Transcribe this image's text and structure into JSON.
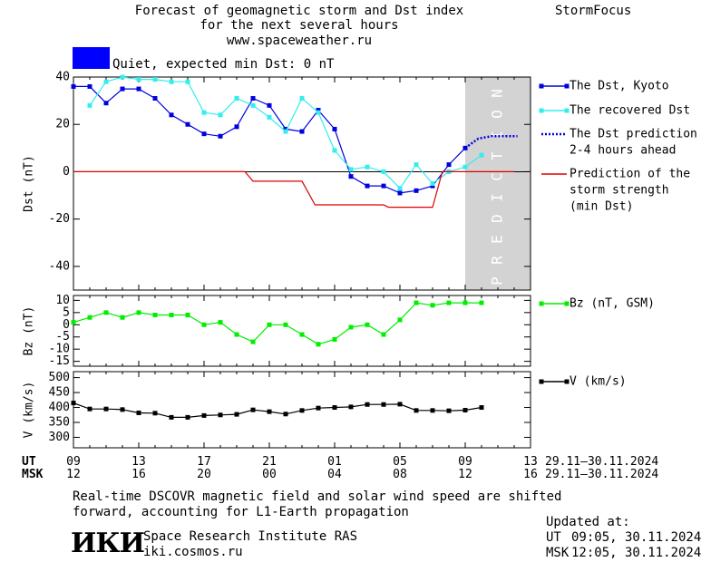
{
  "header": {
    "title_line1": "Forecast of geomagnetic storm and Dst index",
    "title_line2": "for the next several hours",
    "title_line3": "www.spaceweather.ru",
    "brand": "StormFocus",
    "status_text": "Quiet, expected min Dst: 0 nT",
    "status_color": "#0000ff"
  },
  "footer": {
    "note_line1": "Real-time DSCOVR magnetic field and solar wind speed are shifted",
    "note_line2": "forward, accounting for L1-Earth propagation",
    "institute": "Space Research Institute RAS",
    "site": "iki.cosmos.ru",
    "logo_text": "ИКИ",
    "updated_label": "Updated at:",
    "updated_ut_label": "UT",
    "updated_ut": "09:05, 30.11.2024",
    "updated_msk_label": "MSK",
    "updated_msk": "12:05, 30.11.2024"
  },
  "chart_data": {
    "type": "line",
    "x_start_hour": 9,
    "x_range_hours": [
      0,
      28
    ],
    "x_axis": {
      "ut_label": "UT",
      "msk_label": "MSK",
      "ut_ticks": [
        "09",
        "13",
        "17",
        "21",
        "01",
        "05",
        "09",
        "13"
      ],
      "msk_ticks": [
        "12",
        "16",
        "20",
        "00",
        "04",
        "08",
        "12",
        "16"
      ],
      "date_range": "29.11–30.11.2024"
    },
    "prediction_region": {
      "from_hours": 24,
      "to_hours": 28,
      "label": "PREDICTION"
    },
    "panels": [
      {
        "id": "dst",
        "ylabel": "Dst (nT)",
        "ylim": [
          -50,
          40
        ],
        "yticks": [
          40,
          20,
          0,
          -20,
          -40
        ],
        "zero_line": true,
        "series": [
          {
            "name": "The Dst, Kyoto",
            "color": "#0000dd",
            "marker": "square",
            "x": [
              0,
              1,
              2,
              3,
              4,
              5,
              6,
              7,
              8,
              9,
              10,
              11,
              12,
              13,
              14,
              15,
              16,
              17,
              18,
              19,
              20,
              21,
              22,
              23,
              24
            ],
            "y": [
              36,
              36,
              29,
              35,
              35,
              31,
              24,
              20,
              16,
              15,
              19,
              31,
              28,
              18,
              17,
              26,
              18,
              -2,
              -6,
              -6,
              -9,
              -8,
              -6,
              3,
              10
            ]
          },
          {
            "name": "The recovered Dst",
            "color": "#33eeee",
            "marker": "square",
            "x": [
              1,
              2,
              3,
              4,
              5,
              6,
              7,
              8,
              9,
              10,
              11,
              12,
              13,
              14,
              15,
              16,
              17,
              18,
              19,
              20,
              21,
              22,
              23,
              24,
              25
            ],
            "y": [
              28,
              38,
              40,
              39,
              39,
              38,
              38,
              25,
              24,
              31,
              28,
              23,
              17,
              31,
              25,
              9,
              1,
              2,
              0,
              -7,
              3,
              -5,
              0,
              2,
              7
            ]
          },
          {
            "name": "The Dst prediction",
            "name_line2": "2-4 hours ahead",
            "color": "#0000dd",
            "dashed": true,
            "x": [
              24,
              24.8,
              25.6,
              26.4,
              27.2
            ],
            "y": [
              10,
              14,
              15,
              15,
              15
            ]
          },
          {
            "name": "Prediction of the",
            "name_line2": "storm strength",
            "name_line3": "(min Dst)",
            "color": "#dd0000",
            "step": true,
            "x": [
              0,
              10.5,
              11,
              14,
              14.8,
              15,
              19,
              19.3,
              22,
              22.6,
              27
            ],
            "y": [
              0,
              0,
              -4,
              -4,
              -14,
              -14,
              -14,
              -15,
              -15,
              0,
              0
            ]
          }
        ]
      },
      {
        "id": "bz",
        "ylabel": "Bz (nT)",
        "ylim": [
          -17,
          12
        ],
        "yticks": [
          10,
          5,
          0,
          -5,
          -10,
          -15
        ],
        "zero_line": false,
        "series": [
          {
            "name": "Bz (nT, GSM)",
            "color": "#00ee00",
            "marker": "square",
            "x": [
              0,
              1,
              2,
              3,
              4,
              5,
              6,
              7,
              8,
              9,
              10,
              11,
              12,
              13,
              14,
              15,
              16,
              17,
              18,
              19,
              20,
              21,
              22,
              23,
              24,
              25
            ],
            "y": [
              1,
              3,
              5,
              3,
              5,
              4,
              4,
              4,
              0,
              1,
              -4,
              -7,
              0,
              0,
              -4,
              -8,
              -6,
              -1,
              0,
              -4,
              2,
              9,
              8,
              9,
              9,
              9
            ]
          }
        ]
      },
      {
        "id": "v",
        "ylabel": "V (km/s)",
        "ylim": [
          265,
          520
        ],
        "yticks": [
          500,
          450,
          400,
          350,
          300
        ],
        "zero_line": false,
        "series": [
          {
            "name": "V (km/s)",
            "color": "#000000",
            "marker": "square",
            "x": [
              0,
              1,
              2,
              3,
              4,
              5,
              6,
              7,
              8,
              9,
              10,
              11,
              12,
              13,
              14,
              15,
              16,
              17,
              18,
              19,
              20,
              21,
              22,
              23,
              24,
              25
            ],
            "y": [
              415,
              395,
              395,
              393,
              382,
              381,
              367,
              367,
              373,
              375,
              377,
              392,
              386,
              378,
              390,
              398,
              400,
              402,
              410,
              410,
              411,
              390,
              390,
              389,
              391,
              400
            ]
          }
        ]
      }
    ]
  }
}
